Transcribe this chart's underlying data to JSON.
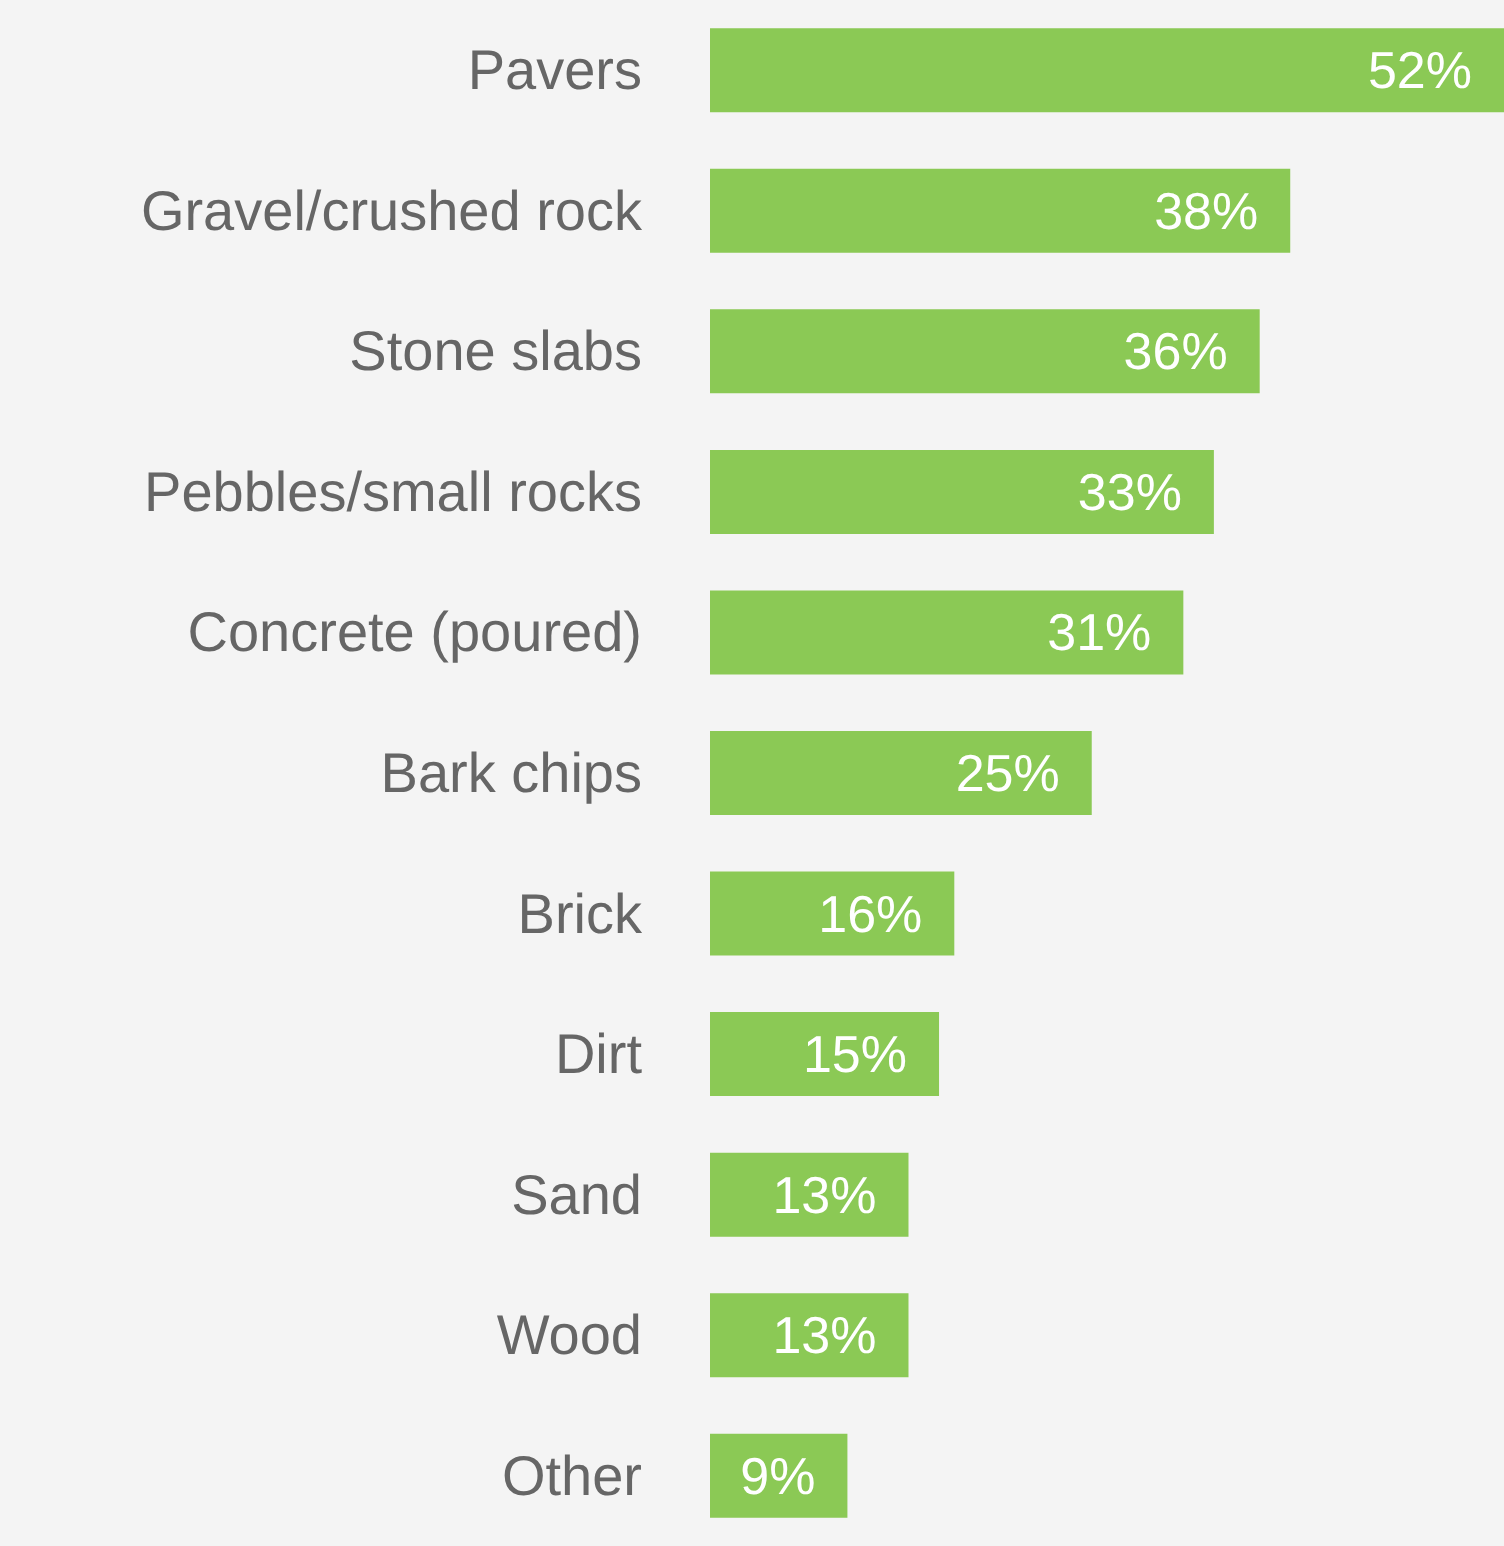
{
  "chart_data": {
    "type": "bar",
    "orientation": "horizontal",
    "categories": [
      "Pavers",
      "Gravel/crushed rock",
      "Stone slabs",
      "Pebbles/small rocks",
      "Concrete (poured)",
      "Bark chips",
      "Brick",
      "Dirt",
      "Sand",
      "Wood",
      "Other"
    ],
    "values": [
      52,
      38,
      36,
      33,
      31,
      25,
      16,
      15,
      13,
      13,
      9
    ],
    "value_labels": [
      "52%",
      "38%",
      "36%",
      "33%",
      "31%",
      "25%",
      "16%",
      "15%",
      "13%",
      "13%",
      "9%"
    ],
    "color": "#8bc955"
  }
}
